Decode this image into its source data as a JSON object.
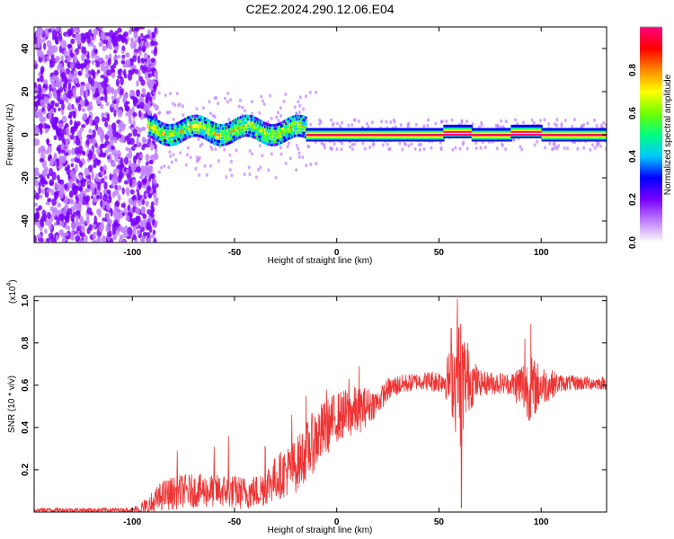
{
  "title": "C2E2.2024.290.12.06.E04",
  "colors": {
    "line": "#ee3333",
    "axis": "#000000",
    "colormap": [
      "#ffffff",
      "#c080ff",
      "#7a00ff",
      "#0000ff",
      "#00c8ff",
      "#00ff80",
      "#70ff00",
      "#ffff00",
      "#ff8800",
      "#ff0000",
      "#ff0080"
    ]
  },
  "chart_data": [
    {
      "type": "heatmap",
      "xlabel": "Height of straight line (km)",
      "ylabel": "Frequency (Hz)",
      "xlim": [
        -148,
        132
      ],
      "ylim": [
        -50,
        50
      ],
      "xticks": [
        -100,
        -50,
        0,
        50,
        100
      ],
      "xtick_labels": [
        "-100",
        "-50",
        "0",
        "50",
        "100"
      ],
      "yticks": [
        -40,
        -20,
        0,
        20,
        40
      ],
      "ytick_labels": [
        "-40",
        "-20",
        "0",
        "20",
        "40"
      ],
      "colorbar": {
        "label": "Normalized spectral amplitude",
        "range": [
          0,
          1
        ],
        "ticks": [
          0,
          0.2,
          0.4,
          0.6,
          0.8
        ],
        "tick_labels": [
          "0.0",
          "0.2",
          "0.4",
          "0.6",
          "0.8"
        ]
      },
      "features": {
        "noise_region_x": [
          -148,
          -92
        ],
        "signal_band_center_hz": 0,
        "signal_band_start_x": -92
      }
    },
    {
      "type": "line",
      "xlabel": "Height of straight line (km)",
      "ylabel": "SNR (10 * v/v)",
      "multiplier_label": "(x10",
      "multiplier_exp": "4",
      "multiplier_close": ")",
      "xlim": [
        -148,
        132
      ],
      "ylim": [
        0,
        1.02
      ],
      "xticks": [
        -100,
        -50,
        0,
        50,
        100
      ],
      "xtick_labels": [
        "-100",
        "-50",
        "0",
        "50",
        "100"
      ],
      "yticks": [
        0.2,
        0.4,
        0.6,
        0.8,
        1.0
      ],
      "ytick_labels": [
        "0.2",
        "0.4",
        "0.6",
        "0.8",
        "1.0"
      ],
      "envelope": {
        "x": [
          -148,
          -100,
          -92,
          -85,
          -75,
          -65,
          -55,
          -45,
          -38,
          -30,
          -20,
          -10,
          0,
          10,
          20,
          25,
          30,
          40,
          50,
          55,
          58,
          60,
          62,
          65,
          70,
          80,
          90,
          95,
          100,
          110,
          120,
          132
        ],
        "y": [
          0.01,
          0.01,
          0.02,
          0.08,
          0.1,
          0.1,
          0.1,
          0.09,
          0.1,
          0.16,
          0.22,
          0.35,
          0.45,
          0.48,
          0.52,
          0.58,
          0.6,
          0.62,
          0.62,
          0.63,
          0.63,
          0.62,
          0.63,
          0.62,
          0.61,
          0.61,
          0.6,
          0.58,
          0.6,
          0.61,
          0.61,
          0.61
        ]
      },
      "noise_amplitude": {
        "x": [
          -148,
          -100,
          -92,
          -80,
          -60,
          -40,
          -25,
          -10,
          0,
          10,
          20,
          40,
          52,
          56,
          60,
          64,
          70,
          85,
          90,
          95,
          100,
          110,
          132
        ],
        "y": [
          0.01,
          0.01,
          0.06,
          0.08,
          0.08,
          0.08,
          0.12,
          0.15,
          0.12,
          0.12,
          0.06,
          0.04,
          0.06,
          0.16,
          0.35,
          0.16,
          0.06,
          0.05,
          0.12,
          0.16,
          0.1,
          0.04,
          0.03
        ]
      },
      "peaks": [
        {
          "x": -78,
          "y": 0.29
        },
        {
          "x": -60,
          "y": 0.31
        },
        {
          "x": -53,
          "y": 0.36
        },
        {
          "x": -35,
          "y": 0.31
        },
        {
          "x": -22,
          "y": 0.46
        },
        {
          "x": -15,
          "y": 0.55
        },
        {
          "x": -5,
          "y": 0.58
        },
        {
          "x": 6,
          "y": 0.63
        },
        {
          "x": 11,
          "y": 0.69
        },
        {
          "x": 56,
          "y": 0.87
        },
        {
          "x": 59,
          "y": 1.01
        },
        {
          "x": 61,
          "y": 0.02
        },
        {
          "x": 64,
          "y": 0.8
        },
        {
          "x": 95,
          "y": 0.89
        },
        {
          "x": 92,
          "y": 0.82
        }
      ]
    }
  ]
}
